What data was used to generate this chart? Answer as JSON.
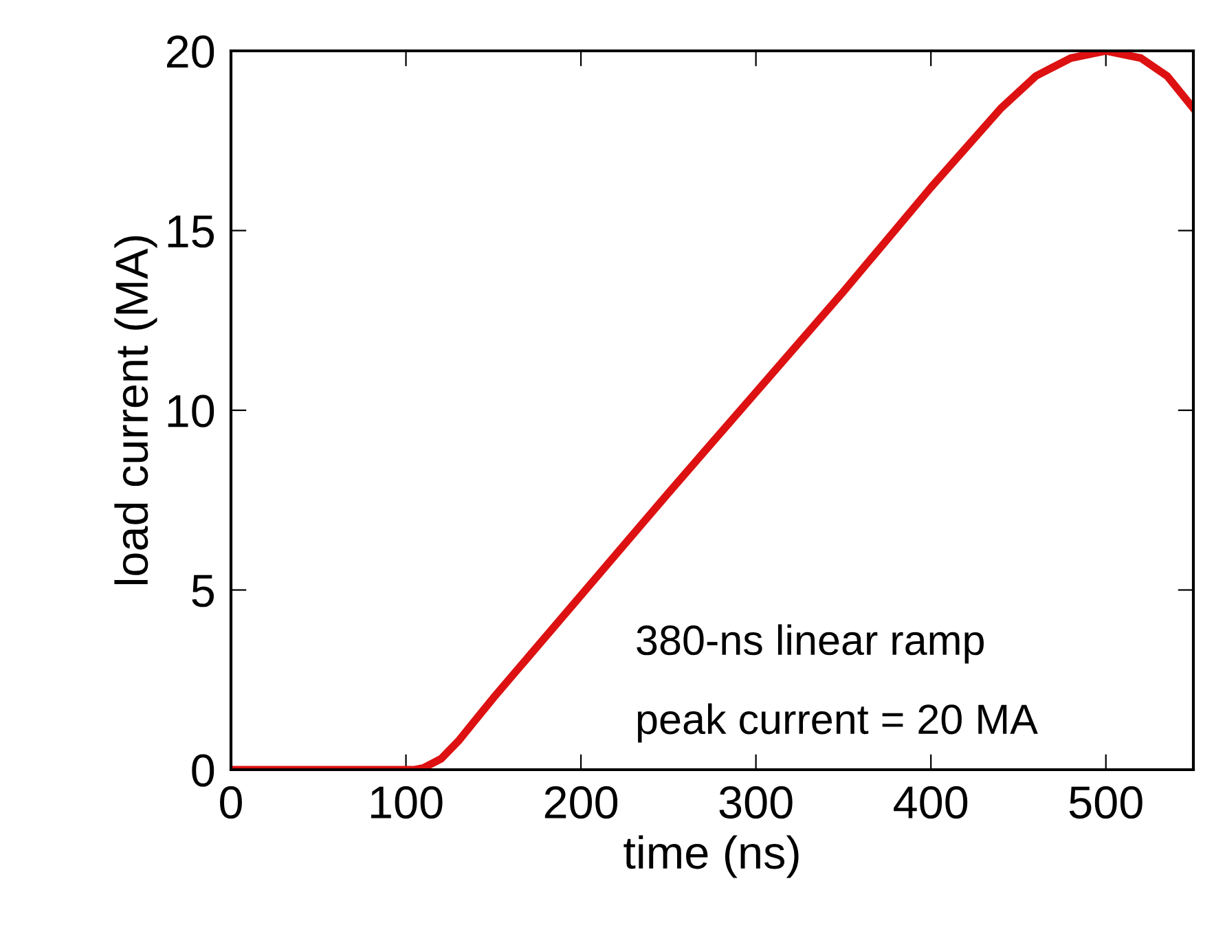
{
  "chart_data": {
    "type": "line",
    "xlabel": "time (ns)",
    "ylabel": "load current (MA)",
    "x": [
      0,
      105,
      110,
      120,
      130,
      140,
      150,
      200,
      250,
      300,
      350,
      400,
      440,
      460,
      480,
      500,
      520,
      535,
      550
    ],
    "series": [
      {
        "color": "#dd1111",
        "values": [
          0,
          0,
          0.05,
          0.3,
          0.8,
          1.4,
          2.0,
          4.85,
          7.7,
          10.5,
          13.3,
          16.2,
          18.4,
          19.3,
          19.8,
          20,
          19.8,
          19.3,
          18.4
        ]
      }
    ],
    "xlim": [
      0,
      550
    ],
    "xticks": [
      0,
      100,
      200,
      300,
      400,
      500
    ],
    "ylim": [
      0,
      20
    ],
    "yticks": [
      0,
      5,
      10,
      15,
      20
    ],
    "grid": false,
    "legend": false,
    "marker": "none",
    "line_style": "solid",
    "annotations": [
      "380-ns linear ramp",
      "peak current = 20 MA"
    ]
  }
}
